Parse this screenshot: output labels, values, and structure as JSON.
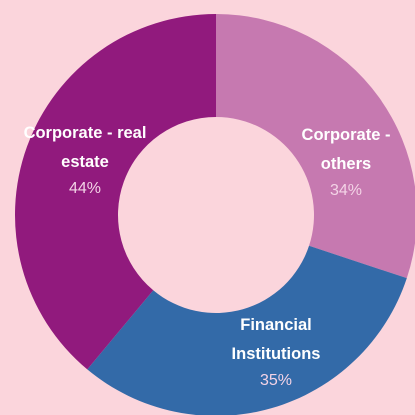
{
  "chart_data": {
    "type": "donut",
    "categories": [
      "Corporate - others",
      "Financial Institutions",
      "Corporate - real estate"
    ],
    "values": [
      34,
      35,
      44
    ],
    "value_labels": [
      "34%",
      "35%",
      "44%"
    ],
    "colors": [
      "#c679b0",
      "#336aa8",
      "#911a7d"
    ]
  }
}
